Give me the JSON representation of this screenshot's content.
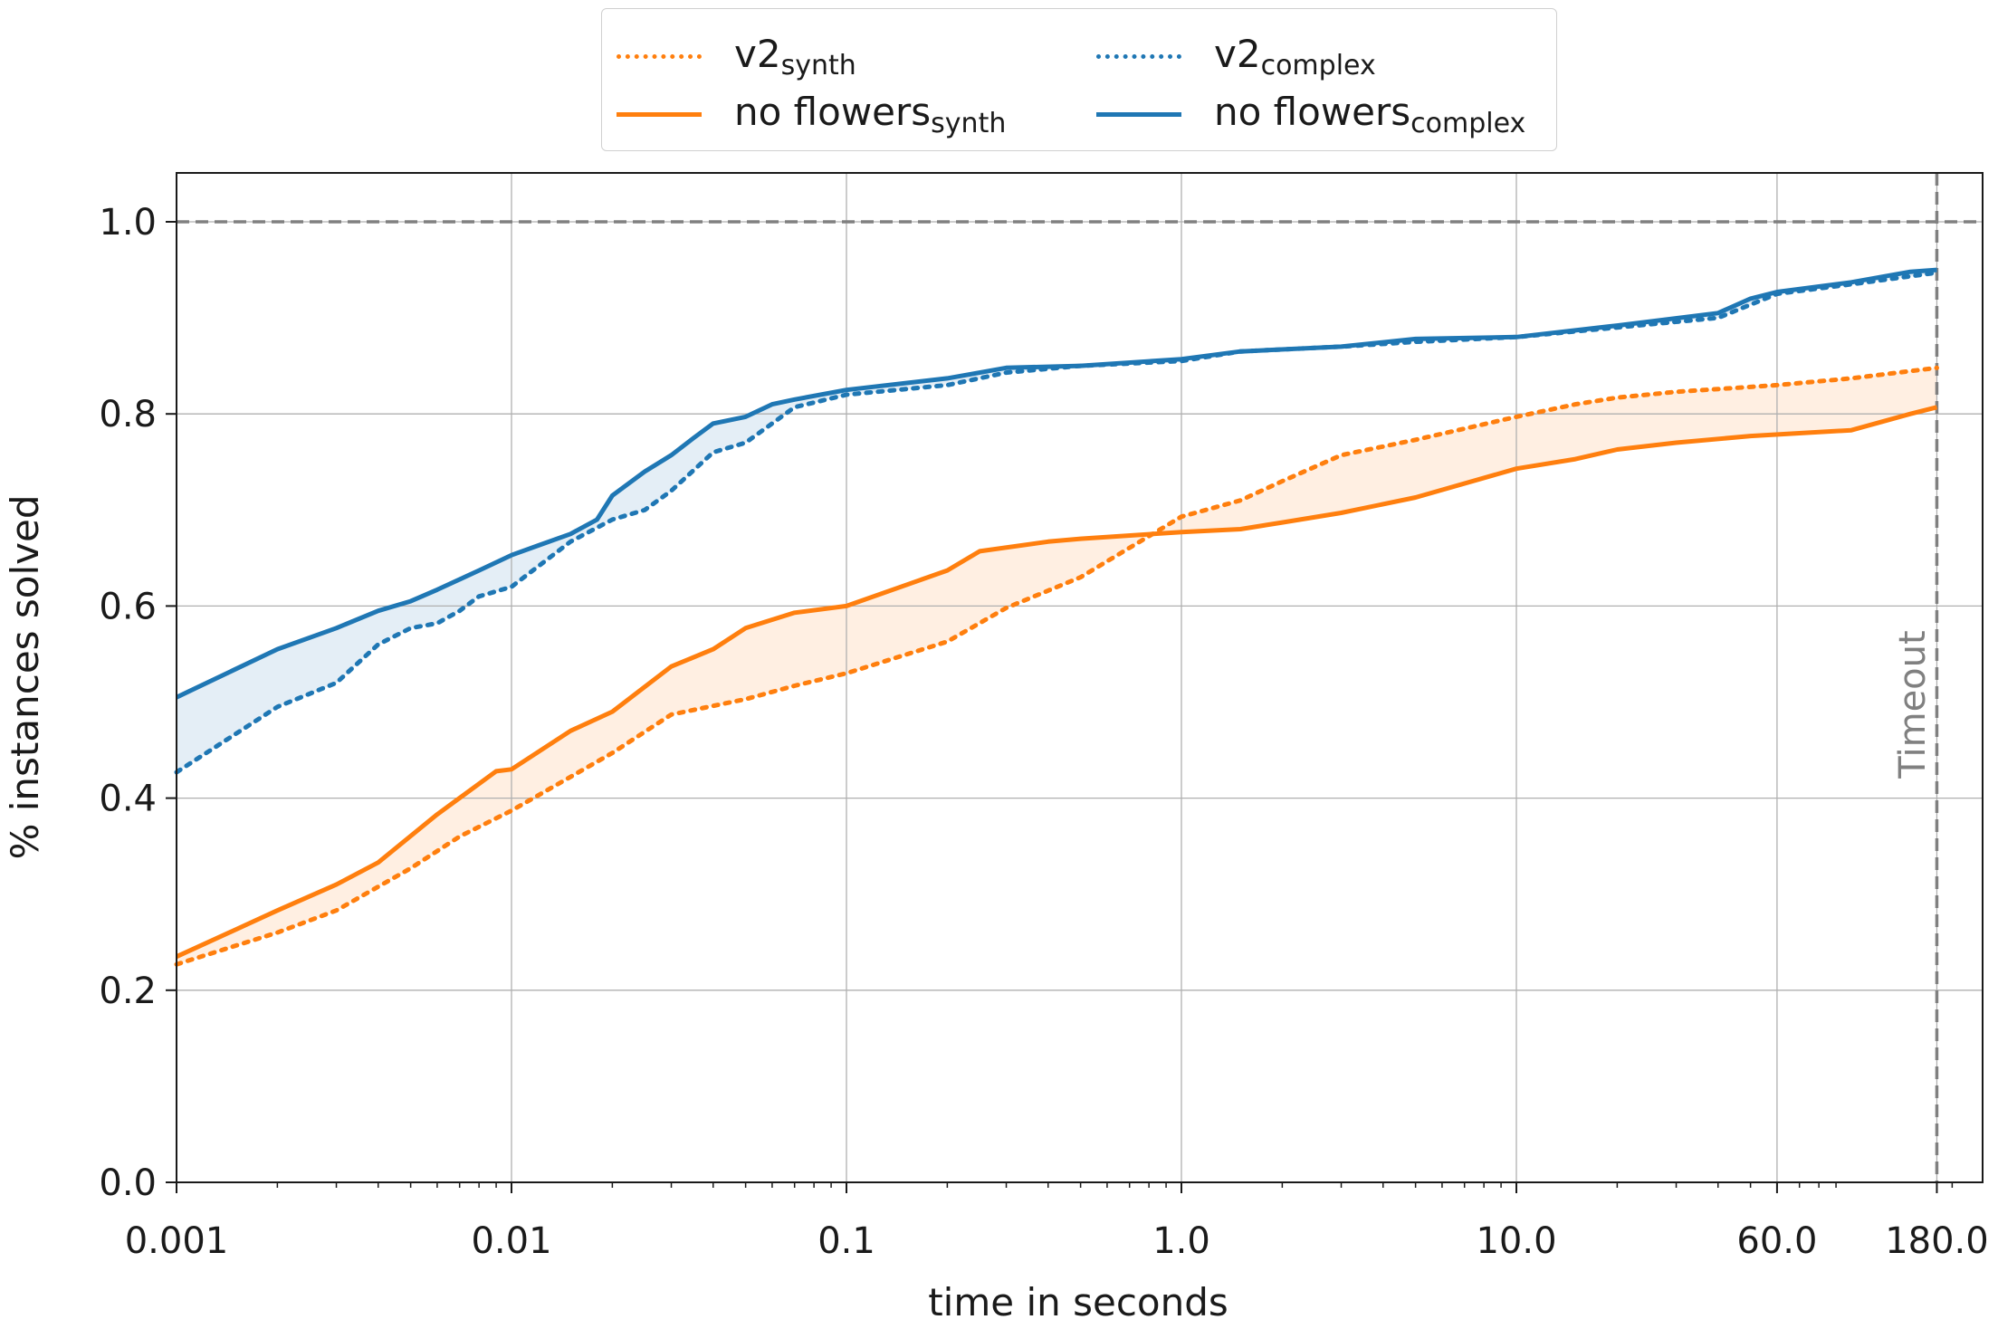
{
  "chart_data": {
    "type": "line",
    "xlabel": "time in seconds",
    "ylabel": "% instances solved",
    "x_scale": "log",
    "xlim": [
      0.001,
      250
    ],
    "ylim": [
      0.0,
      1.05
    ],
    "x_ticks": [
      0.001,
      0.01,
      0.1,
      1.0,
      10.0,
      60.0,
      180.0
    ],
    "x_tick_labels": [
      "0.001",
      "0.01",
      "0.1",
      "1.0",
      "10.0",
      "60.0",
      "180.0"
    ],
    "y_ticks": [
      0.0,
      0.2,
      0.4,
      0.6,
      0.8,
      1.0
    ],
    "y_tick_labels": [
      "0.0",
      "0.2",
      "0.4",
      "0.6",
      "0.8",
      "1.0"
    ],
    "grid": true,
    "legend_position": "top-center",
    "reference_lines": [
      {
        "orientation": "horizontal",
        "value": 1.0
      },
      {
        "orientation": "vertical",
        "value": 180.0,
        "label": "Timeout"
      }
    ],
    "series": [
      {
        "key": "v2_synth",
        "name_main": "v2",
        "name_sub": "synth",
        "style": "dotted",
        "color": "#ff7f0e",
        "x": [
          0.001,
          0.002,
          0.003,
          0.005,
          0.007,
          0.01,
          0.02,
          0.03,
          0.05,
          0.07,
          0.1,
          0.2,
          0.3,
          0.5,
          1.0,
          1.5,
          2.0,
          3.0,
          5.0,
          10.0,
          15.0,
          20.0,
          30.0,
          60.0,
          100.0,
          180.0
        ],
        "y": [
          0.227,
          0.26,
          0.283,
          0.327,
          0.36,
          0.387,
          0.447,
          0.487,
          0.503,
          0.517,
          0.53,
          0.563,
          0.598,
          0.63,
          0.693,
          0.71,
          0.73,
          0.757,
          0.773,
          0.797,
          0.81,
          0.817,
          0.823,
          0.83,
          0.837,
          0.848
        ]
      },
      {
        "key": "nf_synth",
        "name_main": "no flowers",
        "name_sub": "synth",
        "style": "solid",
        "color": "#ff7f0e",
        "x": [
          0.001,
          0.002,
          0.003,
          0.004,
          0.006,
          0.009,
          0.01,
          0.015,
          0.02,
          0.03,
          0.04,
          0.05,
          0.07,
          0.1,
          0.2,
          0.25,
          0.4,
          0.5,
          1.0,
          1.5,
          2.0,
          3.0,
          5.0,
          10.0,
          15.0,
          20.0,
          30.0,
          50.0,
          100.0,
          150.0,
          180.0
        ],
        "y": [
          0.235,
          0.283,
          0.31,
          0.333,
          0.383,
          0.428,
          0.43,
          0.47,
          0.49,
          0.537,
          0.555,
          0.577,
          0.593,
          0.6,
          0.637,
          0.657,
          0.667,
          0.67,
          0.677,
          0.68,
          0.687,
          0.697,
          0.713,
          0.743,
          0.753,
          0.763,
          0.77,
          0.777,
          0.783,
          0.8,
          0.807
        ]
      },
      {
        "key": "v2_complex",
        "name_main": "v2",
        "name_sub": "complex",
        "style": "dotted",
        "color": "#1f77b4",
        "x": [
          0.001,
          0.002,
          0.003,
          0.004,
          0.005,
          0.006,
          0.007,
          0.008,
          0.01,
          0.015,
          0.02,
          0.025,
          0.03,
          0.04,
          0.05,
          0.06,
          0.07,
          0.1,
          0.2,
          0.3,
          0.5,
          1.0,
          1.5,
          3.0,
          5.0,
          10.0,
          20.0,
          40.0,
          60.0,
          100.0,
          180.0
        ],
        "y": [
          0.427,
          0.495,
          0.52,
          0.56,
          0.577,
          0.582,
          0.595,
          0.61,
          0.62,
          0.667,
          0.69,
          0.7,
          0.72,
          0.76,
          0.77,
          0.79,
          0.807,
          0.82,
          0.83,
          0.843,
          0.85,
          0.855,
          0.865,
          0.87,
          0.875,
          0.88,
          0.89,
          0.9,
          0.925,
          0.935,
          0.947
        ]
      },
      {
        "key": "nf_complex",
        "name_main": "no flowers",
        "name_sub": "complex",
        "style": "solid",
        "color": "#1f77b4",
        "x": [
          0.001,
          0.002,
          0.003,
          0.004,
          0.005,
          0.006,
          0.008,
          0.01,
          0.012,
          0.015,
          0.018,
          0.02,
          0.025,
          0.03,
          0.035,
          0.04,
          0.05,
          0.06,
          0.07,
          0.1,
          0.2,
          0.3,
          0.5,
          1.0,
          1.5,
          3.0,
          5.0,
          10.0,
          20.0,
          40.0,
          50.0,
          60.0,
          100.0,
          150.0,
          180.0
        ],
        "y": [
          0.505,
          0.555,
          0.577,
          0.595,
          0.605,
          0.617,
          0.637,
          0.653,
          0.663,
          0.675,
          0.69,
          0.715,
          0.74,
          0.757,
          0.775,
          0.79,
          0.797,
          0.81,
          0.815,
          0.825,
          0.837,
          0.848,
          0.85,
          0.857,
          0.865,
          0.87,
          0.878,
          0.88,
          0.892,
          0.905,
          0.92,
          0.927,
          0.937,
          0.948,
          0.95
        ]
      }
    ]
  }
}
